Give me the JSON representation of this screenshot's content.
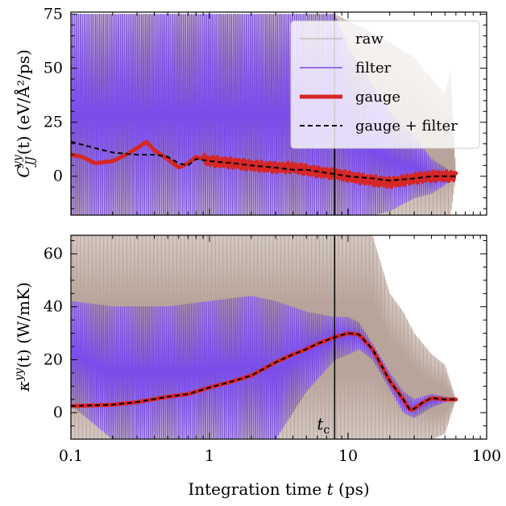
{
  "chart_data": [
    {
      "type": "line",
      "ylabel": "C_JJ^yy(t) (eV/Å²/ps)",
      "xscale": "log",
      "xlim": [
        0.1,
        100
      ],
      "ylim": [
        -18,
        76
      ],
      "yticks": [
        "0",
        "25",
        "50",
        "75"
      ],
      "xtick_labels_visible": false,
      "legend": {
        "placement": "top-right",
        "entries": [
          "raw",
          "filter",
          "gauge",
          "gauge + filter"
        ]
      },
      "vline_label": "",
      "series": [
        {
          "name": "raw",
          "style": "rapidly oscillating envelope",
          "x": [
            0.1,
            0.3,
            1,
            3,
            5,
            8,
            10,
            20,
            30,
            40,
            50,
            55,
            60
          ],
          "upper": [
            75,
            75,
            75,
            75,
            75,
            75,
            72,
            62,
            55,
            45,
            38,
            50,
            0
          ],
          "lower": [
            -18,
            -18,
            -18,
            -18,
            -18,
            -18,
            -18,
            -18,
            -18,
            -18,
            -18,
            -18,
            0
          ]
        },
        {
          "name": "filter",
          "style": "oscillating envelope",
          "x": [
            0.1,
            0.3,
            1,
            2,
            3,
            5,
            8,
            10,
            15,
            20,
            30,
            40,
            50,
            60
          ],
          "upper": [
            75,
            75,
            75,
            75,
            75,
            75,
            75,
            60,
            42,
            30,
            18,
            8,
            4,
            0
          ],
          "lower": [
            -18,
            -18,
            -18,
            -18,
            -18,
            -18,
            -18,
            -18,
            -18,
            -16,
            -10,
            -8,
            -4,
            0
          ]
        },
        {
          "name": "gauge",
          "x": [
            0.1,
            0.12,
            0.15,
            0.2,
            0.25,
            0.3,
            0.35,
            0.4,
            0.5,
            0.6,
            0.7,
            0.8,
            1,
            1.5,
            2,
            3,
            4,
            5,
            6,
            8,
            10,
            12,
            15,
            20,
            25,
            30,
            40,
            50,
            60
          ],
          "y": [
            10,
            9,
            6,
            7,
            10,
            13,
            16,
            12,
            8,
            4,
            6,
            9,
            7,
            6,
            5,
            4,
            4,
            3,
            2,
            1,
            0,
            -1,
            -2,
            -3,
            -2,
            -1,
            0,
            0,
            0
          ]
        },
        {
          "name": "gauge + filter",
          "x": [
            0.1,
            0.15,
            0.2,
            0.3,
            0.4,
            0.5,
            0.6,
            0.7,
            0.8,
            1,
            1.5,
            2,
            3,
            4,
            5,
            8,
            10,
            15,
            20,
            30,
            40,
            60
          ],
          "y": [
            16,
            13,
            11,
            10,
            10,
            9,
            6,
            5,
            8,
            7,
            6,
            5,
            4,
            3,
            3,
            1,
            0,
            -1,
            -2,
            -1,
            0,
            0
          ]
        }
      ]
    },
    {
      "type": "line",
      "xlabel": "Integration time t (ps)",
      "ylabel": "κ^yy(t) (W/mK)",
      "xscale": "log",
      "xlim": [
        0.1,
        100
      ],
      "ylim": [
        -10,
        67
      ],
      "xticks": [
        "0.1",
        "1",
        "10",
        "100"
      ],
      "yticks": [
        "0",
        "20",
        "40",
        "60"
      ],
      "vline_label": "t_c",
      "series": [
        {
          "name": "raw",
          "style": "rapidly oscillating envelope",
          "x": [
            0.1,
            0.3,
            1,
            2,
            3,
            5,
            8,
            10,
            15,
            20,
            25,
            30,
            40,
            50,
            60
          ],
          "upper": [
            67,
            67,
            67,
            67,
            67,
            67,
            67,
            67,
            67,
            45,
            38,
            30,
            22,
            18,
            5
          ],
          "lower": [
            -10,
            -10,
            -10,
            -10,
            -10,
            -10,
            -10,
            -10,
            -10,
            -10,
            -10,
            -10,
            -10,
            -8,
            5
          ]
        },
        {
          "name": "filter",
          "style": "oscillating envelope",
          "x": [
            0.1,
            0.2,
            0.3,
            0.5,
            1,
            2,
            3,
            5,
            8,
            10,
            12,
            15,
            20,
            25,
            30,
            40,
            50,
            60
          ],
          "upper": [
            42,
            40,
            40,
            40,
            42,
            44,
            42,
            38,
            36,
            36,
            34,
            26,
            15,
            8,
            5,
            7,
            6,
            5
          ],
          "lower": [
            3,
            -10,
            -10,
            -10,
            -10,
            -10,
            -10,
            8,
            20,
            22,
            24,
            20,
            9,
            0,
            -2,
            2,
            4,
            5
          ]
        },
        {
          "name": "gauge",
          "x": [
            0.1,
            0.2,
            0.3,
            0.5,
            0.7,
            1,
            1.5,
            2,
            3,
            4,
            5,
            6,
            8,
            10,
            12,
            15,
            20,
            25,
            28,
            30,
            35,
            40,
            50,
            60
          ],
          "y": [
            2.5,
            3,
            4,
            6,
            7,
            9.5,
            12,
            14,
            19,
            22,
            24,
            26,
            28.5,
            30,
            29.5,
            24,
            12,
            5,
            1,
            1.5,
            4,
            5.5,
            5,
            5
          ]
        },
        {
          "name": "gauge + filter",
          "x": [
            0.1,
            0.2,
            0.3,
            0.5,
            0.7,
            1,
            1.5,
            2,
            3,
            4,
            5,
            6,
            8,
            10,
            12,
            15,
            20,
            25,
            28,
            30,
            35,
            40,
            50,
            60
          ],
          "y": [
            2.5,
            3,
            4,
            6,
            7,
            9.5,
            12,
            14,
            19,
            22,
            24,
            26,
            28.5,
            30,
            29.5,
            24,
            12,
            5,
            1,
            1.5,
            4,
            5.5,
            5,
            5
          ]
        }
      ]
    }
  ],
  "vline_x": 8,
  "colors": {
    "raw": "#b8a49a",
    "filter": "#7a4dea",
    "gauge": "#d62626",
    "gauge_filter": "#000000"
  }
}
